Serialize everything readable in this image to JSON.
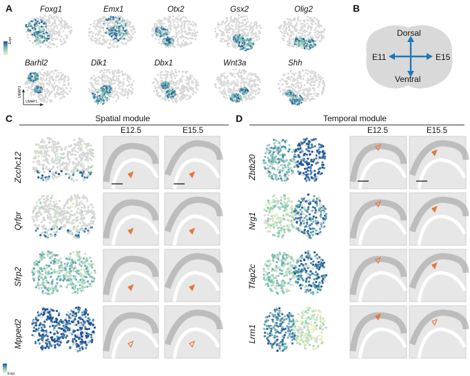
{
  "panels": {
    "a": "A",
    "b": "B",
    "c": "C",
    "d": "D"
  },
  "panel_a": {
    "genes_row1": [
      "Foxg1",
      "Emx1",
      "Otx2",
      "Gsx2",
      "Olig2"
    ],
    "genes_row2": [
      "Barhl2",
      "Dlk1",
      "Dbx1",
      "Wnt3a",
      "Shh"
    ],
    "legend_label": "Expr.",
    "axis_x": "UMAP1",
    "axis_y": "UMAP2"
  },
  "panel_b": {
    "top": "Dorsal",
    "bottom": "Ventral",
    "left": "E11",
    "right": "E15",
    "arrow_color": "#1f77b4"
  },
  "panel_c": {
    "title": "Spatial module",
    "age1": "E12.5",
    "age2": "E15.5",
    "genes": [
      "Zcchc12",
      "Qrfpr",
      "Sfrp2",
      "Mpped2"
    ],
    "legend_label": "Expr."
  },
  "panel_d": {
    "title": "Temporal module",
    "age1": "E12.5",
    "age2": "E15.5",
    "genes": [
      "Zbtb20",
      "Nrg1",
      "Tfap2c",
      "Lrrn1"
    ]
  },
  "colors": {
    "gray_cell": "#d8d8d8",
    "low_expr": "#f4f7c4",
    "mid_expr": "#7cc4b8",
    "high_expr": "#1f4f9a",
    "arrowhead": "#e8763a"
  }
}
